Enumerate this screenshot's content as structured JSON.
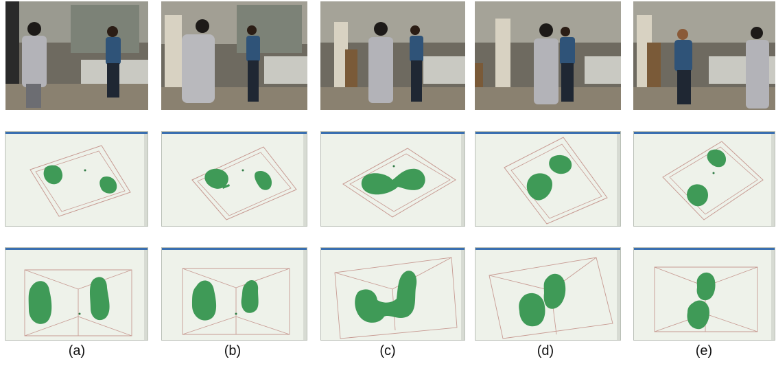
{
  "panels": [
    {
      "id": "a",
      "caption": "(a)"
    },
    {
      "id": "b",
      "caption": "(b)"
    },
    {
      "id": "c",
      "caption": "(c)"
    },
    {
      "id": "d",
      "caption": "(d)"
    },
    {
      "id": "e",
      "caption": "(e)"
    }
  ],
  "colors": {
    "blob": "#3f9a57",
    "blob_edge": "#2f7a44",
    "box_line": "#c79a92",
    "view_bg": "#eef2ea",
    "titlebar": "#3a6fb0"
  }
}
